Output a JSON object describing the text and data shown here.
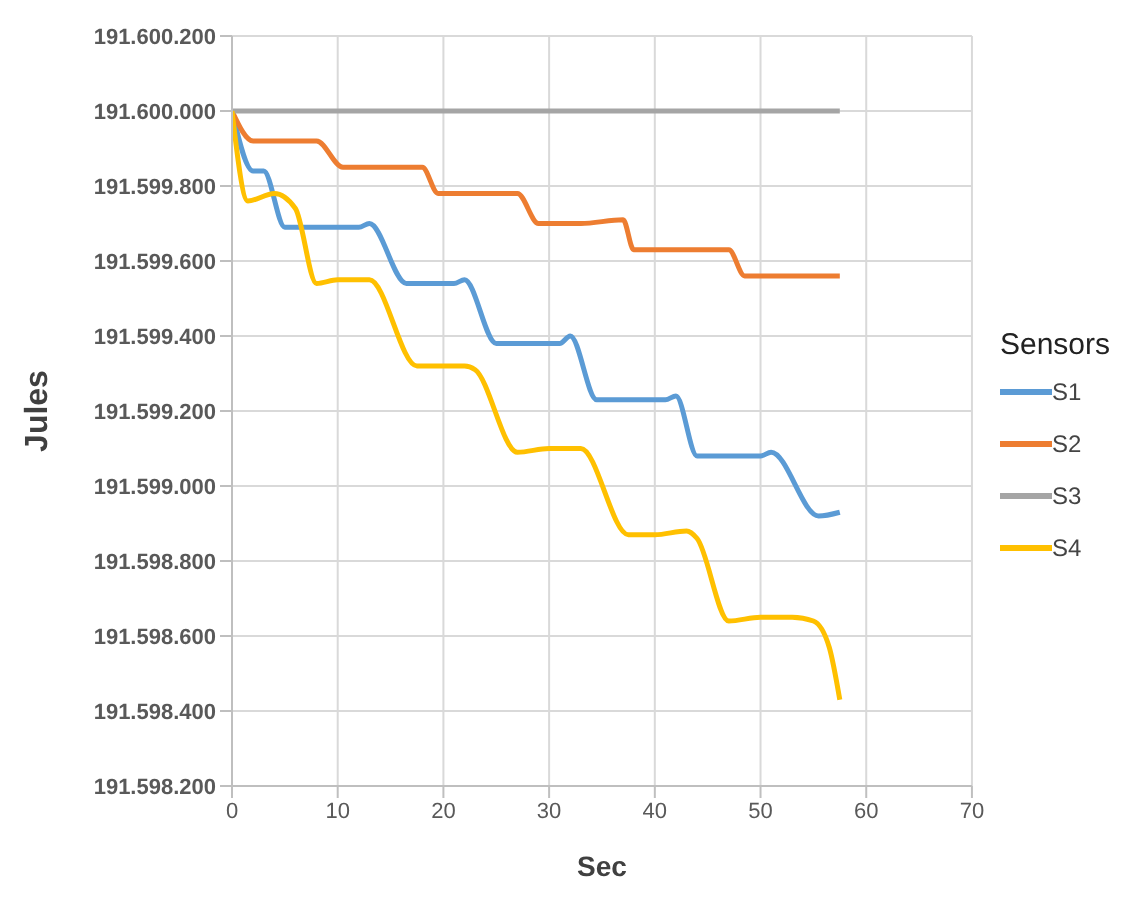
{
  "chart_data": {
    "type": "line",
    "xlabel": "Sec",
    "ylabel": "Jules",
    "legend_title": "Sensors",
    "legend": "right",
    "grid": true,
    "marker": "none",
    "line_style": "solid",
    "xlim": [
      0,
      70
    ],
    "xticks": [
      0,
      10,
      20,
      30,
      40,
      50,
      60,
      70
    ],
    "ylim": [
      191598200,
      191600200
    ],
    "yticks": [
      {
        "value": 191598200,
        "label": "191.598.200"
      },
      {
        "value": 191598400,
        "label": "191.598.400"
      },
      {
        "value": 191598600,
        "label": "191.598.600"
      },
      {
        "value": 191598800,
        "label": "191.598.800"
      },
      {
        "value": 191599000,
        "label": "191.599.000"
      },
      {
        "value": 191599200,
        "label": "191.599.200"
      },
      {
        "value": 191599400,
        "label": "191.599.400"
      },
      {
        "value": 191599600,
        "label": "191.599.600"
      },
      {
        "value": 191599800,
        "label": "191.599.800"
      },
      {
        "value": 191600000,
        "label": "191.600.000"
      },
      {
        "value": 191600200,
        "label": "191.600.200"
      }
    ],
    "series": [
      {
        "name": "S1",
        "color": "#5b9bd5",
        "x": [
          0,
          2,
          3,
          5,
          8,
          12,
          13,
          16.5,
          19,
          21,
          22,
          25,
          28,
          31,
          32,
          34.5,
          38,
          41,
          42,
          44,
          47,
          50,
          51,
          55.5,
          57.5
        ],
        "values": [
          191600000,
          191599840,
          191599840,
          191599690,
          191599690,
          191599690,
          191599700,
          191599540,
          191599540,
          191599540,
          191599550,
          191599380,
          191599380,
          191599380,
          191599400,
          191599230,
          191599230,
          191599230,
          191599240,
          191599080,
          191599080,
          191599080,
          191599090,
          191598920,
          191598930
        ]
      },
      {
        "name": "S2",
        "color": "#ed7d31",
        "x": [
          0,
          2,
          5,
          8,
          10.5,
          14,
          18,
          19.5,
          24,
          27,
          29,
          33,
          37,
          38,
          42,
          47,
          48.5,
          53,
          57.5
        ],
        "values": [
          191600000,
          191599920,
          191599920,
          191599920,
          191599850,
          191599850,
          191599850,
          191599780,
          191599780,
          191599780,
          191599700,
          191599700,
          191599710,
          191599630,
          191599630,
          191599630,
          191599560,
          191599560,
          191599560
        ]
      },
      {
        "name": "S3",
        "color": "#a5a5a5",
        "x": [
          0,
          57.5
        ],
        "values": [
          191600000,
          191600000
        ]
      },
      {
        "name": "S4",
        "color": "#ffc000",
        "x": [
          0,
          1.5,
          4,
          6,
          8,
          10,
          13,
          17.5,
          20,
          22,
          23,
          27,
          30,
          33,
          37.5,
          40,
          43,
          44,
          47,
          50,
          53,
          55,
          56.5,
          57.5
        ],
        "values": [
          191600000,
          191599760,
          191599780,
          191599740,
          191599540,
          191599550,
          191599550,
          191599320,
          191599320,
          191599320,
          191599310,
          191599090,
          191599100,
          191599100,
          191598870,
          191598870,
          191598880,
          191598860,
          191598640,
          191598650,
          191598650,
          191598640,
          191598570,
          191598430
        ]
      }
    ]
  }
}
